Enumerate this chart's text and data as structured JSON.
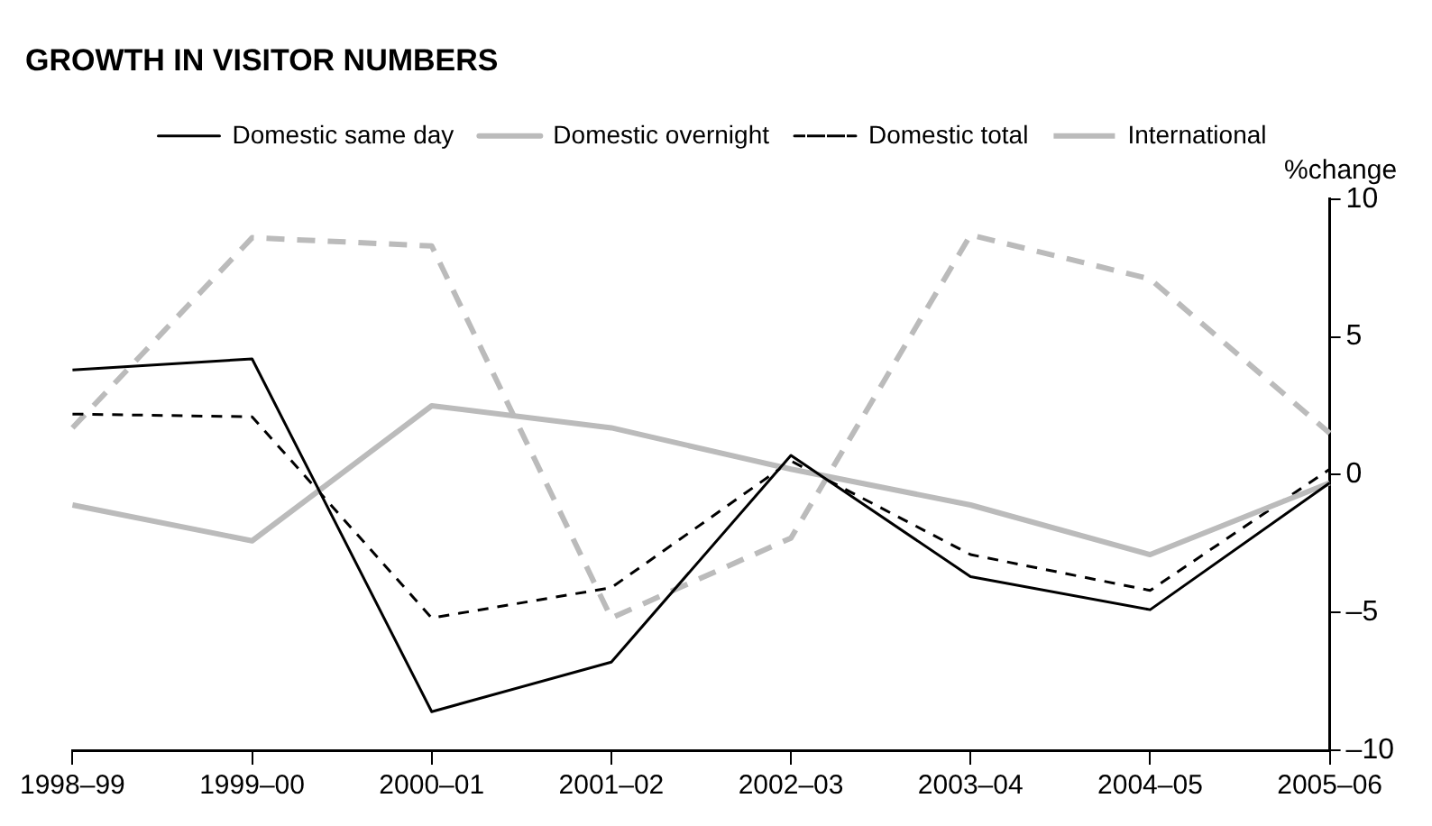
{
  "chart_data": {
    "type": "line",
    "title": "GROWTH IN VISITOR NUMBERS",
    "ylabel": "%change",
    "categories": [
      "1998–99",
      "1999–00",
      "2000–01",
      "2001–02",
      "2002–03",
      "2003–04",
      "2004–05",
      "2005–06"
    ],
    "series": [
      {
        "name": "Domestic same day",
        "color": "#000000",
        "line_style": "solid",
        "values": [
          3.8,
          4.2,
          -8.6,
          -6.8,
          0.7,
          -3.7,
          -4.9,
          -0.3
        ]
      },
      {
        "name": "Domestic overnight",
        "color": "#bbbbbb",
        "line_style": "solid",
        "values": [
          -1.1,
          -2.4,
          2.5,
          1.7,
          0.2,
          -1.1,
          -2.9,
          -0.3
        ]
      },
      {
        "name": "Domestic total",
        "color": "#000000",
        "line_style": "dashed",
        "values": [
          2.2,
          2.1,
          -5.2,
          -4.1,
          0.5,
          -2.9,
          -4.2,
          0.2
        ]
      },
      {
        "name": "International",
        "color": "#bbbbbb",
        "line_style": "dashed",
        "values": [
          1.7,
          8.6,
          8.3,
          -5.2,
          -2.3,
          8.7,
          7.1,
          1.5
        ]
      }
    ],
    "ylim": [
      -10,
      10
    ],
    "yticks": [
      {
        "value": -10,
        "label": "–10"
      },
      {
        "value": -5,
        "label": "–5"
      },
      0,
      5,
      10
    ],
    "grid": false,
    "legend": "top",
    "marker": "none"
  }
}
